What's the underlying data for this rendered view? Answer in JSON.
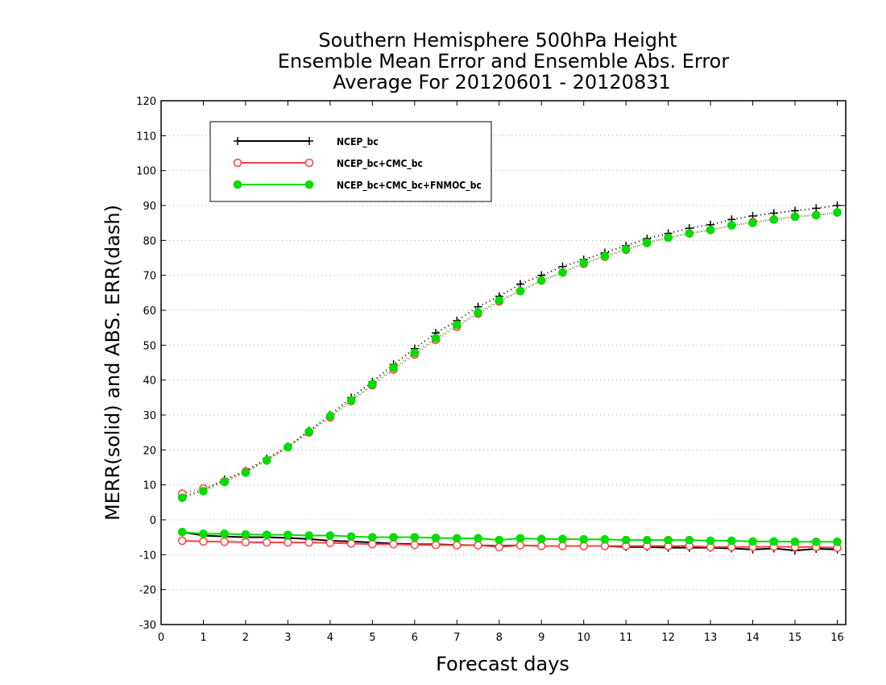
{
  "chart_data": {
    "type": "line",
    "title_lines": [
      "Southern Hemisphere 500hPa Height",
      "Ensemble Mean Error and Ensemble Abs. Error",
      "Average For 20120601 - 20120831"
    ],
    "xlabel": "Forecast days",
    "ylabel": "MERR(solid) and ABS. ERR(dash)",
    "xlim": [
      0,
      16.2
    ],
    "ylim": [
      -30,
      120
    ],
    "xticks": [
      0,
      1,
      2,
      3,
      4,
      5,
      6,
      7,
      8,
      9,
      10,
      11,
      12,
      13,
      14,
      15,
      16
    ],
    "xtick_labels": [
      "0",
      "1",
      "2",
      "3",
      "4",
      "5",
      "6",
      "7",
      "8",
      "9",
      "10",
      "11",
      "12",
      "13",
      "14",
      "15",
      "16"
    ],
    "yticks": [
      -30,
      -20,
      -10,
      0,
      10,
      20,
      30,
      40,
      50,
      60,
      70,
      80,
      90,
      100,
      110,
      120
    ],
    "ytick_labels": [
      "-30",
      "-20",
      "-10",
      "0",
      "10",
      "20",
      "30",
      "40",
      "50",
      "60",
      "70",
      "80",
      "90",
      "100",
      "110",
      "120"
    ],
    "grid": true,
    "legend_position": "top-left",
    "x": [
      0.5,
      1.0,
      1.5,
      2.0,
      2.5,
      3.0,
      3.5,
      4.0,
      4.5,
      5.0,
      5.5,
      6.0,
      6.5,
      7.0,
      7.5,
      8.0,
      8.5,
      9.0,
      9.5,
      10.0,
      10.5,
      11.0,
      11.5,
      12.0,
      12.5,
      13.0,
      13.5,
      14.0,
      14.5,
      15.0,
      15.5,
      16.0
    ],
    "series": [
      {
        "name": "NCEP_bc",
        "color": "#000000",
        "marker": "plus",
        "abs_err": [
          6.5,
          8.5,
          11.5,
          14.0,
          17.5,
          21.0,
          25.5,
          30.0,
          35.0,
          39.5,
          44.5,
          49.0,
          53.5,
          57.0,
          61.0,
          64.0,
          67.5,
          70.0,
          72.5,
          74.5,
          76.5,
          78.5,
          80.5,
          82.0,
          83.5,
          84.5,
          86.0,
          87.0,
          87.8,
          88.5,
          89.2,
          90.0
        ],
        "mean_err": [
          -3.5,
          -4.5,
          -4.8,
          -5.0,
          -5.0,
          -5.2,
          -5.5,
          -6.0,
          -6.2,
          -6.5,
          -6.8,
          -7.0,
          -7.0,
          -7.2,
          -7.3,
          -7.5,
          -7.3,
          -7.5,
          -7.5,
          -7.5,
          -7.5,
          -7.8,
          -7.8,
          -8.0,
          -8.0,
          -8.0,
          -8.2,
          -8.5,
          -8.2,
          -8.8,
          -8.3,
          -8.5
        ]
      },
      {
        "name": "NCEP_bc+CMC_bc",
        "color": "#ff4040",
        "marker": "open-circle",
        "abs_err": [
          7.5,
          9.0,
          11.0,
          13.8,
          17.0,
          20.8,
          25.0,
          29.3,
          34.0,
          38.5,
          43.0,
          47.3,
          51.5,
          55.3,
          59.0,
          62.5,
          65.5,
          68.5,
          70.8,
          73.3,
          75.3,
          77.3,
          79.3,
          80.8,
          82.0,
          83.0,
          84.3,
          85.3,
          86.0,
          86.8,
          87.3,
          88.0
        ],
        "mean_err": [
          -6.0,
          -6.2,
          -6.3,
          -6.4,
          -6.5,
          -6.5,
          -6.5,
          -6.6,
          -6.8,
          -7.0,
          -7.0,
          -7.2,
          -7.2,
          -7.3,
          -7.3,
          -7.8,
          -7.3,
          -7.5,
          -7.5,
          -7.5,
          -7.5,
          -7.5,
          -7.5,
          -7.5,
          -7.5,
          -7.8,
          -7.8,
          -7.8,
          -7.7,
          -7.8,
          -7.8,
          -8.0
        ]
      },
      {
        "name": "NCEP_bc+CMC_bc+FNMOC_bc",
        "color": "#00dd00",
        "marker": "filled-circle",
        "abs_err": [
          6.3,
          8.2,
          10.8,
          13.5,
          17.0,
          20.8,
          25.2,
          29.7,
          34.2,
          38.8,
          43.5,
          47.8,
          52.0,
          55.8,
          59.3,
          62.8,
          65.5,
          68.5,
          70.8,
          73.5,
          75.5,
          77.5,
          79.3,
          80.8,
          82.0,
          83.0,
          84.3,
          85.0,
          86.0,
          86.8,
          87.2,
          88.0
        ],
        "mean_err": [
          -3.5,
          -4.0,
          -4.0,
          -4.2,
          -4.3,
          -4.3,
          -4.5,
          -4.5,
          -4.8,
          -5.0,
          -5.0,
          -5.0,
          -5.2,
          -5.3,
          -5.3,
          -5.8,
          -5.3,
          -5.5,
          -5.5,
          -5.6,
          -5.6,
          -5.8,
          -5.8,
          -5.8,
          -5.8,
          -6.0,
          -6.0,
          -6.2,
          -6.2,
          -6.3,
          -6.3,
          -6.3
        ]
      }
    ]
  }
}
